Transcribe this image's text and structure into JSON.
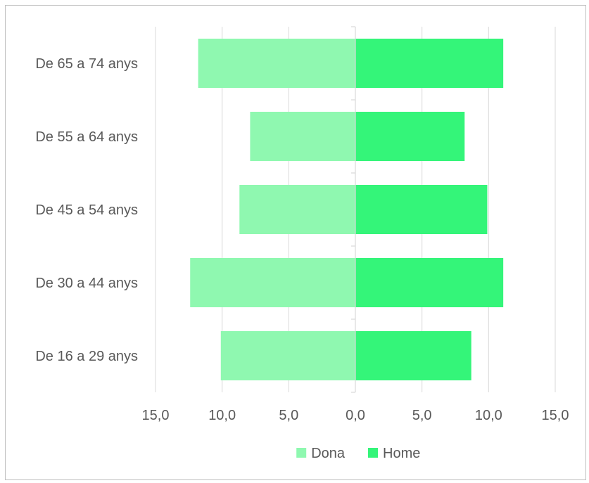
{
  "chart_data": {
    "type": "bar",
    "orientation": "horizontal",
    "layout": "population-pyramid",
    "title": "",
    "xlabel": "",
    "ylabel": "",
    "categories": [
      "De 65 a 74 anys",
      "De 55 a 64 anys",
      "De 45 a 54 anys",
      "De 30 a 44 anys",
      "De 16 a 29 anys"
    ],
    "series": [
      {
        "name": "Dona",
        "color": "#8ff8b0",
        "side": "left",
        "values": [
          11.8,
          7.9,
          8.7,
          12.4,
          10.1
        ]
      },
      {
        "name": "Home",
        "color": "#34f579",
        "side": "right",
        "values": [
          11.1,
          8.2,
          9.9,
          11.1,
          8.7
        ]
      }
    ],
    "xlim": [
      -15,
      15
    ],
    "xticks": [
      -15,
      -10,
      -5,
      0,
      5,
      10,
      15
    ],
    "xtick_labels": [
      "15,0",
      "10,0",
      "5,0",
      "0,0",
      "5,0",
      "10,0",
      "15,0"
    ],
    "grid": "vertical",
    "legend_position": "bottom"
  }
}
